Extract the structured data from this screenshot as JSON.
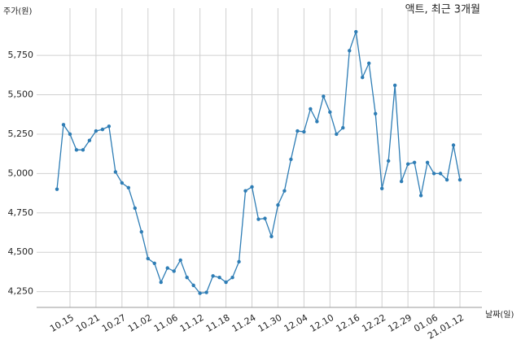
{
  "chart_data": {
    "type": "line",
    "title": "액트, 최근 3개월",
    "ylabel": "주가(원)",
    "xlabel": "날짜(일)",
    "categories": [
      null,
      null,
      "10.15",
      null,
      null,
      null,
      "10.21",
      null,
      null,
      null,
      "10.27",
      null,
      null,
      null,
      "11.02",
      null,
      null,
      null,
      "11.06",
      null,
      null,
      null,
      "11.12",
      null,
      null,
      null,
      "11.18",
      null,
      null,
      null,
      "11.24",
      null,
      null,
      null,
      "11.30",
      null,
      null,
      null,
      "12.04",
      null,
      null,
      null,
      "12.10",
      null,
      null,
      null,
      "12.16",
      null,
      null,
      null,
      "12.22",
      null,
      null,
      null,
      "12.29",
      null,
      null,
      null,
      "01.06",
      null,
      null,
      null,
      "21.01.12"
    ],
    "values": [
      4900,
      5310,
      5250,
      5150,
      5150,
      5210,
      5270,
      5280,
      5300,
      5010,
      4940,
      4910,
      4780,
      4630,
      4460,
      4430,
      4310,
      4400,
      4380,
      4450,
      4340,
      4290,
      4240,
      4245,
      4350,
      4340,
      4310,
      4340,
      4440,
      4890,
      4915,
      4710,
      4715,
      4600,
      4800,
      4890,
      5090,
      5270,
      5265,
      5410,
      5330,
      5490,
      5390,
      5250,
      5290,
      5780,
      5900,
      5610,
      5700,
      5380,
      4905,
      5080,
      5560,
      4950,
      5060,
      5070,
      4860,
      5070,
      5000,
      5000,
      4960,
      5180,
      4960
    ],
    "color": "#2e7db5",
    "ylim": [
      4150,
      6050
    ],
    "yticks": [
      {
        "value": 4250,
        "label": "4,250"
      },
      {
        "value": 4500,
        "label": "4,500"
      },
      {
        "value": 4750,
        "label": "4,750"
      },
      {
        "value": 5000,
        "label": "5,000"
      },
      {
        "value": 5250,
        "label": "5,250"
      },
      {
        "value": 5500,
        "label": "5,500"
      },
      {
        "value": 5750,
        "label": "5,750"
      }
    ],
    "grid": true
  }
}
